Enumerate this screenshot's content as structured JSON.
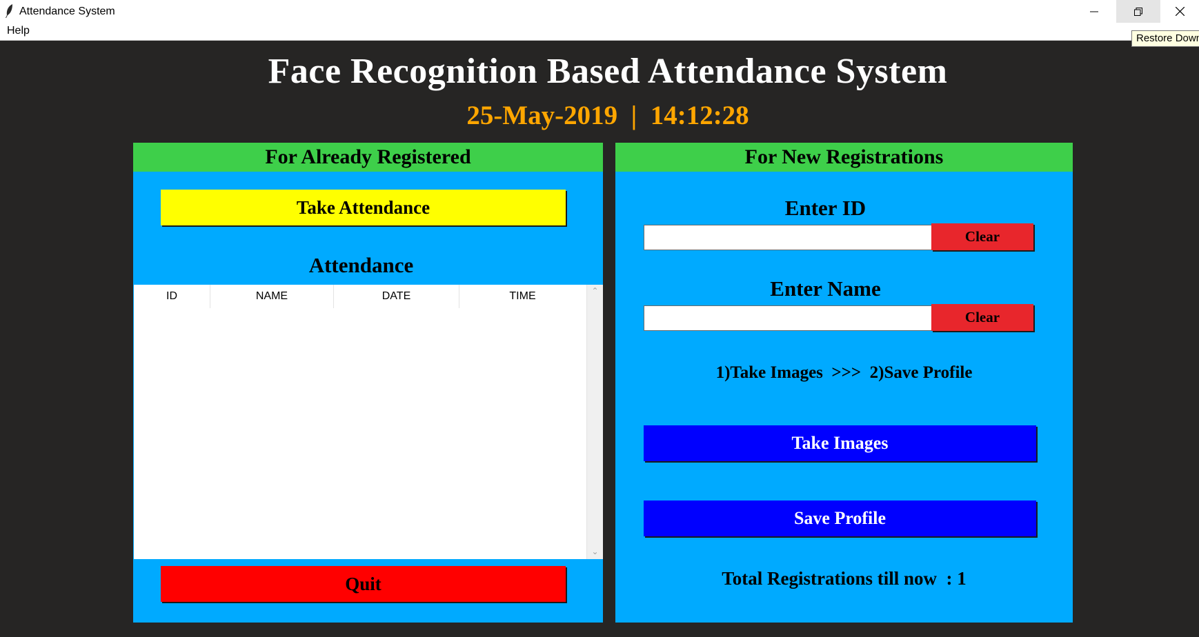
{
  "window": {
    "title": "Attendance System",
    "tooltip": "Restore Down"
  },
  "menu": {
    "help": "Help"
  },
  "header": {
    "title": "Face Recognition Based Attendance System",
    "date": "25-May-2019",
    "separator": "|",
    "time": "14:12:28"
  },
  "left_panel": {
    "title": "For Already Registered",
    "take_attendance_label": "Take Attendance",
    "attendance_label": "Attendance",
    "columns": [
      "ID",
      "NAME",
      "DATE",
      "TIME"
    ],
    "rows": [],
    "quit_label": "Quit"
  },
  "right_panel": {
    "title": "For New Registrations",
    "enter_id_label": "Enter ID",
    "id_value": "",
    "clear_id_label": "Clear",
    "enter_name_label": "Enter Name",
    "name_value": "",
    "clear_name_label": "Clear",
    "steps_text": "1)Take Images  >>>  2)Save Profile",
    "take_images_label": "Take Images",
    "save_profile_label": "Save Profile",
    "total_registrations_text": "Total Registrations till now  : 1"
  },
  "colors": {
    "background": "#262524",
    "panel": "#00aaff",
    "panel_header": "#3ecf4a",
    "take_attendance": "#ffff00",
    "quit": "#ff0000",
    "clear": "#e8262c",
    "action": "#0000ff",
    "date_time": "#ffa600"
  },
  "icons": {
    "app": "feather-icon",
    "minimize": "minimize-icon",
    "restore": "restore-icon",
    "close": "close-icon"
  }
}
